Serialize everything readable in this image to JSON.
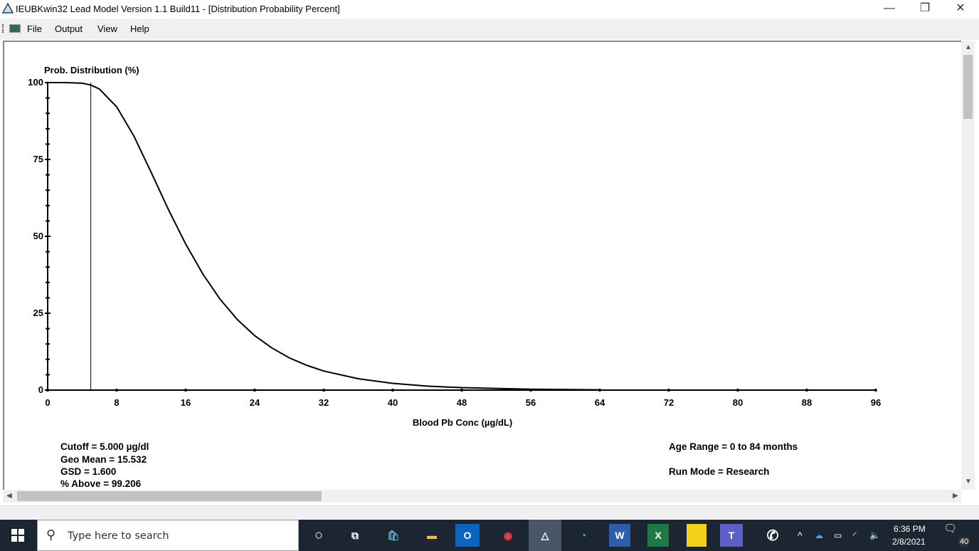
{
  "window": {
    "title": "IEUBKwin32 Lead Model Version 1.1 Build11 - [Distribution Probability Percent]",
    "minimize": "—",
    "restore": "❐",
    "close": "✕"
  },
  "menu": [
    {
      "label": "File"
    },
    {
      "label": "Output"
    },
    {
      "label": "View"
    },
    {
      "label": "Help"
    }
  ],
  "chart_data": {
    "type": "line",
    "ylabel": "Prob. Distribution (%)",
    "xlabel": "Blood Pb Conc (µg/dL)",
    "xlim": [
      0,
      96
    ],
    "ylim": [
      0,
      100
    ],
    "xticks": [
      0,
      8,
      16,
      24,
      32,
      40,
      48,
      56,
      64,
      72,
      80,
      88,
      96
    ],
    "yticks": [
      0,
      25,
      50,
      75,
      100
    ],
    "cutoff_line_x": 5,
    "x": [
      0,
      2,
      4,
      5,
      6,
      8,
      10,
      12,
      14,
      16,
      18,
      20,
      22,
      24,
      26,
      28,
      30,
      32,
      36,
      40,
      44,
      48,
      56,
      64
    ],
    "y": [
      100,
      100,
      99.8,
      99.2,
      97.9,
      92.1,
      82.6,
      70.8,
      58.7,
      47.5,
      37.7,
      29.5,
      22.9,
      17.7,
      13.7,
      10.5,
      8.1,
      6.2,
      3.7,
      2.2,
      1.3,
      0.8,
      0.3,
      0.1
    ],
    "grid": false
  },
  "info": {
    "cutoff": "Cutoff = 5.000  µg/dl",
    "geomean": "Geo Mean = 15.532",
    "gsd": "GSD = 1.600",
    "above": "% Above = 99.206",
    "age": "Age Range = 0 to 84 months",
    "runmode": "Run Mode = Research"
  },
  "taskbar": {
    "search_placeholder": "Type here to search",
    "time": "6:36 PM",
    "date": "2/8/2021",
    "notifications": "40"
  }
}
